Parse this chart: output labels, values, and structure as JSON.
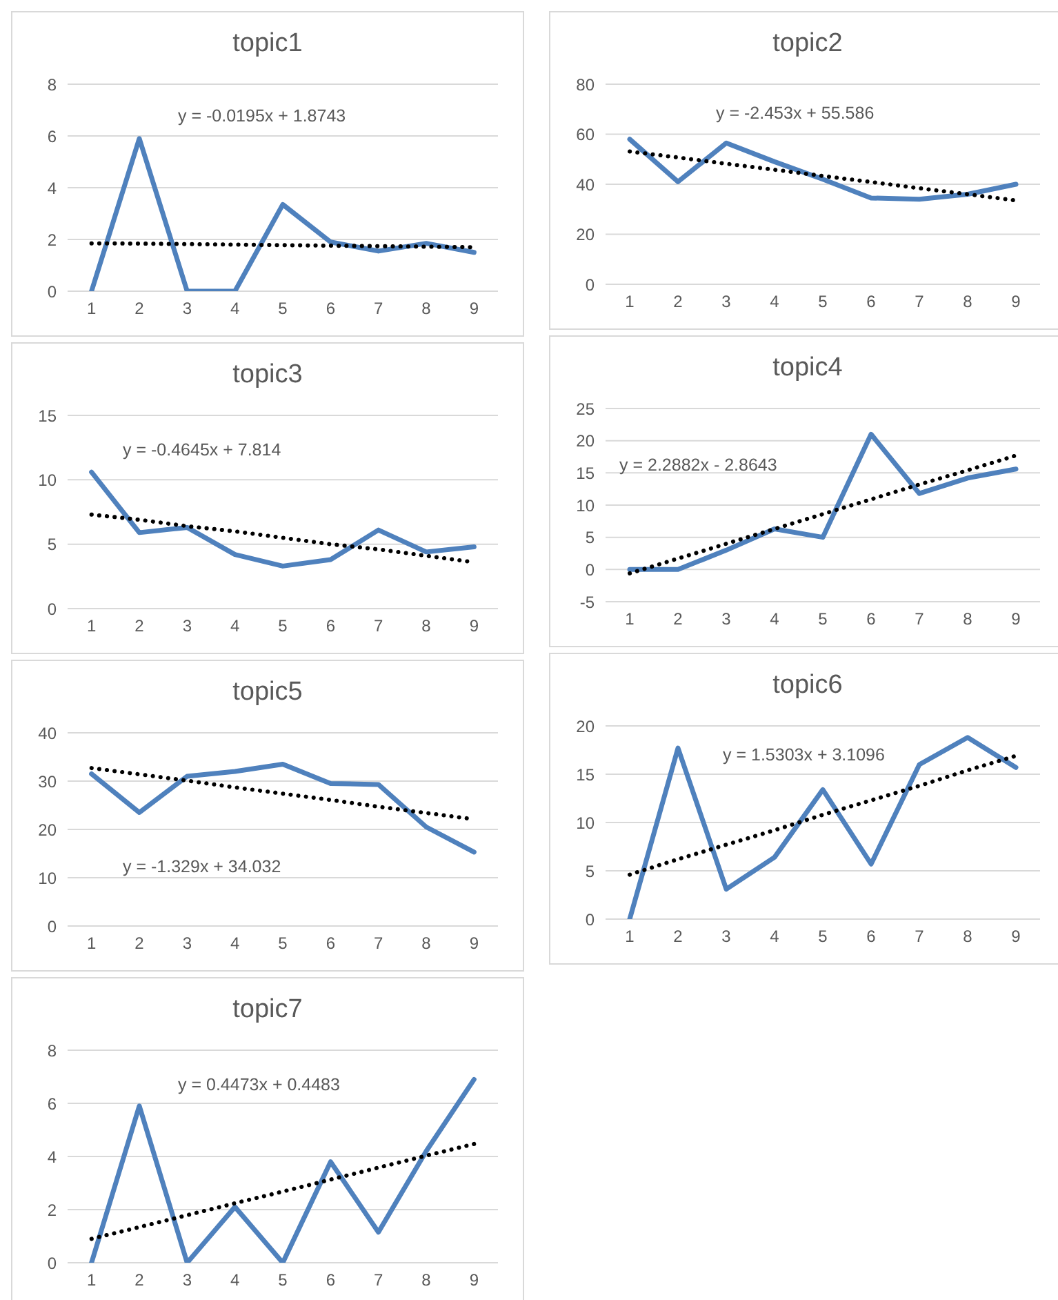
{
  "chart_data": [
    {
      "type": "line",
      "title": "topic1",
      "categories": [
        "1",
        "2",
        "3",
        "4",
        "5",
        "6",
        "7",
        "8",
        "9"
      ],
      "series": [
        {
          "color": "#4f81bd",
          "values": [
            0,
            5.9,
            0,
            0,
            3.35,
            1.9,
            1.55,
            1.85,
            1.5
          ]
        },
        {
          "type": "line",
          "line_style": "dotted",
          "color": "#000000",
          "values": [
            1.85,
            1.84,
            1.82,
            1.8,
            1.78,
            1.76,
            1.74,
            1.72,
            1.7
          ]
        }
      ],
      "ylim": [
        0,
        8
      ],
      "yticks": [
        0,
        2,
        4,
        6,
        8
      ],
      "grid": "y",
      "marker": "none",
      "line_style": "solid",
      "annotations": [
        "y = -0.0195x + 1.8743"
      ]
    },
    {
      "type": "line",
      "title": "topic2",
      "categories": [
        "1",
        "2",
        "3",
        "4",
        "5",
        "6",
        "7",
        "8",
        "9"
      ],
      "series": [
        {
          "color": "#4f81bd",
          "values": [
            58,
            41,
            56.5,
            49,
            42,
            34.5,
            34,
            36,
            40
          ]
        },
        {
          "type": "line",
          "line_style": "dotted",
          "color": "#000000",
          "values": [
            53.1,
            50.7,
            48.2,
            45.8,
            43.3,
            40.9,
            38.4,
            36.0,
            33.5
          ]
        }
      ],
      "ylim": [
        0,
        80
      ],
      "yticks": [
        0,
        20,
        40,
        60,
        80
      ],
      "grid": "y",
      "marker": "none",
      "line_style": "solid",
      "annotations": [
        "y = -2.453x + 55.586"
      ]
    },
    {
      "type": "line",
      "title": "topic3",
      "categories": [
        "1",
        "2",
        "3",
        "4",
        "5",
        "6",
        "7",
        "8",
        "9"
      ],
      "series": [
        {
          "color": "#4f81bd",
          "values": [
            10.6,
            5.9,
            6.3,
            4.2,
            3.3,
            3.8,
            6.1,
            4.4,
            4.8
          ]
        },
        {
          "type": "line",
          "line_style": "dotted",
          "color": "#000000",
          "values": [
            7.3,
            6.9,
            6.4,
            6.0,
            5.5,
            5.0,
            4.6,
            4.1,
            3.6
          ]
        }
      ],
      "ylim": [
        0,
        15
      ],
      "yticks": [
        0,
        5,
        10,
        15
      ],
      "grid": "y",
      "marker": "none",
      "line_style": "solid",
      "annotations": [
        "y = -0.4645x + 7.814"
      ]
    },
    {
      "type": "line",
      "title": "topic4",
      "categories": [
        "1",
        "2",
        "3",
        "4",
        "5",
        "6",
        "7",
        "8",
        "9"
      ],
      "series": [
        {
          "color": "#4f81bd",
          "values": [
            0,
            0,
            3,
            6.3,
            5,
            21,
            11.8,
            14.2,
            15.6
          ]
        },
        {
          "type": "line",
          "line_style": "dotted",
          "color": "#000000",
          "values": [
            -0.6,
            1.7,
            4.0,
            6.3,
            8.6,
            10.9,
            13.2,
            15.4,
            17.7
          ]
        }
      ],
      "ylim": [
        -5,
        25
      ],
      "yticks": [
        -5,
        0,
        5,
        10,
        15,
        20,
        25
      ],
      "grid": "y",
      "marker": "none",
      "line_style": "solid",
      "annotations": [
        "y = 2.2882x - 2.8643"
      ]
    },
    {
      "type": "line",
      "title": "topic5",
      "categories": [
        "1",
        "2",
        "3",
        "4",
        "5",
        "6",
        "7",
        "8",
        "9"
      ],
      "series": [
        {
          "color": "#4f81bd",
          "values": [
            31.5,
            23.5,
            31,
            32,
            33.5,
            29.5,
            29.3,
            20.5,
            15.3
          ]
        },
        {
          "type": "line",
          "line_style": "dotted",
          "color": "#000000",
          "values": [
            32.7,
            31.4,
            30.1,
            28.7,
            27.4,
            26.1,
            24.7,
            23.4,
            22.1
          ]
        }
      ],
      "ylim": [
        0,
        40
      ],
      "yticks": [
        0,
        10,
        20,
        30,
        40
      ],
      "grid": "y",
      "marker": "none",
      "line_style": "solid",
      "annotations": [
        "y = -1.329x + 34.032"
      ]
    },
    {
      "type": "line",
      "title": "topic6",
      "categories": [
        "1",
        "2",
        "3",
        "4",
        "5",
        "6",
        "7",
        "8",
        "9"
      ],
      "series": [
        {
          "color": "#4f81bd",
          "values": [
            0,
            17.7,
            3.1,
            6.4,
            13.4,
            5.7,
            16,
            18.8,
            15.7
          ]
        },
        {
          "type": "line",
          "line_style": "dotted",
          "color": "#000000",
          "values": [
            4.6,
            6.2,
            7.7,
            9.2,
            10.8,
            12.3,
            13.8,
            15.4,
            16.9
          ]
        }
      ],
      "ylim": [
        0,
        20
      ],
      "yticks": [
        0,
        5,
        10,
        15,
        20
      ],
      "grid": "y",
      "marker": "none",
      "line_style": "solid",
      "annotations": [
        "y = 1.5303x + 3.1096"
      ]
    },
    {
      "type": "line",
      "title": "topic7",
      "categories": [
        "1",
        "2",
        "3",
        "4",
        "5",
        "6",
        "7",
        "8",
        "9"
      ],
      "series": [
        {
          "color": "#4f81bd",
          "values": [
            0,
            5.9,
            0,
            2.1,
            0,
            3.8,
            1.15,
            4.2,
            6.9
          ]
        },
        {
          "type": "line",
          "line_style": "dotted",
          "color": "#000000",
          "values": [
            0.9,
            1.34,
            1.79,
            2.24,
            2.68,
            3.13,
            3.58,
            4.03,
            4.47
          ]
        }
      ],
      "ylim": [
        0,
        8
      ],
      "yticks": [
        0,
        2,
        4,
        6,
        8
      ],
      "grid": "y",
      "marker": "none",
      "line_style": "solid",
      "annotations": [
        "y = 0.4473x + 0.4483"
      ]
    }
  ]
}
